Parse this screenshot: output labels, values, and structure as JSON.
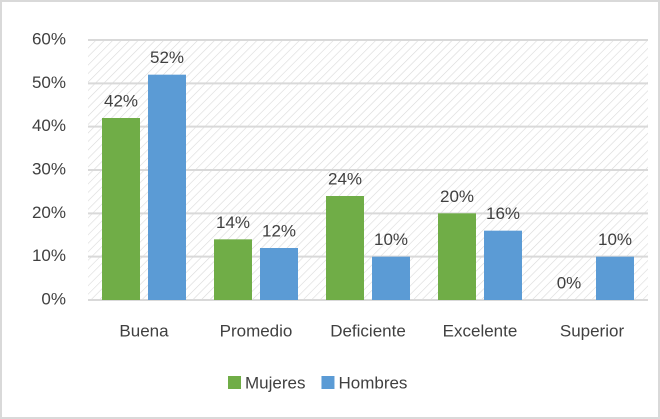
{
  "chart_data": {
    "type": "bar",
    "categories": [
      "Buena",
      "Promedio",
      "Deficiente",
      "Excelente",
      "Superior"
    ],
    "series": [
      {
        "name": "Mujeres",
        "color": "#70ad47",
        "values": [
          42,
          14,
          24,
          20,
          0
        ],
        "value_labels": [
          "42%",
          "14%",
          "24%",
          "20%",
          "0%"
        ]
      },
      {
        "name": "Hombres",
        "color": "#5b9bd5",
        "values": [
          52,
          12,
          10,
          16,
          10
        ],
        "value_labels": [
          "52%",
          "12%",
          "10%",
          "16%",
          "10%"
        ]
      }
    ],
    "ylim": [
      0,
      60
    ],
    "yticks": [
      {
        "value": 0,
        "label": "0%"
      },
      {
        "value": 10,
        "label": "10%"
      },
      {
        "value": 20,
        "label": "20%"
      },
      {
        "value": 30,
        "label": "30%"
      },
      {
        "value": 40,
        "label": "40%"
      },
      {
        "value": 50,
        "label": "50%"
      },
      {
        "value": 60,
        "label": "60%"
      }
    ],
    "grid": true,
    "legend": "bottom"
  }
}
